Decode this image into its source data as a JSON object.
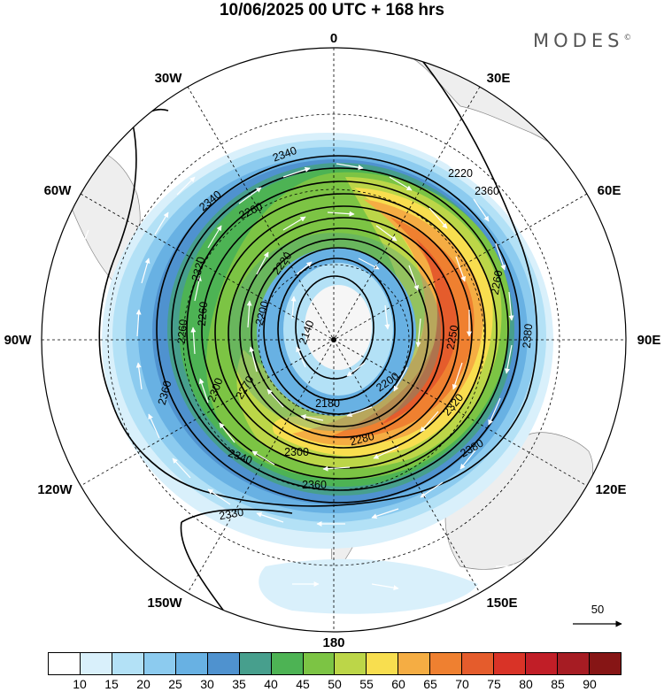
{
  "title": "10/06/2025  00 UTC  + 168 hrs",
  "brand": "MODES",
  "brand_mark": "©",
  "map": {
    "projection": "south polar stereographic",
    "longitude_labels": [
      "0",
      "30E",
      "60E",
      "90E",
      "120E",
      "150E",
      "180",
      "150W",
      "120W",
      "90W",
      "60W",
      "30W"
    ],
    "contour_labels": [
      "2140",
      "2180",
      "2200",
      "2200",
      "2220",
      "2220",
      "2250",
      "2260",
      "2260",
      "2260",
      "2260",
      "2270",
      "2280",
      "2300",
      "2300",
      "2320",
      "2320",
      "2330",
      "2340",
      "2340",
      "2340",
      "2360",
      "2360",
      "2360",
      "2380",
      "2380"
    ],
    "reference_vector": "50"
  },
  "colorbar": {
    "ticks": [
      "10",
      "15",
      "20",
      "25",
      "30",
      "35",
      "40",
      "45",
      "50",
      "55",
      "60",
      "65",
      "70",
      "75",
      "80",
      "85",
      "90"
    ],
    "colors": [
      "#ffffff",
      "#d9f0fb",
      "#b3e1f6",
      "#8ccbef",
      "#68b1e3",
      "#4f92cf",
      "#479f8d",
      "#4db354",
      "#7cc444",
      "#bcd648",
      "#f8de4f",
      "#f5ad43",
      "#ef8030",
      "#e55c2c",
      "#d93327",
      "#c11e27",
      "#a61c23",
      "#861515"
    ]
  }
}
